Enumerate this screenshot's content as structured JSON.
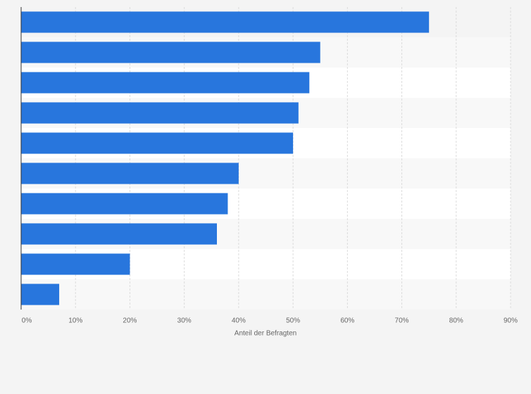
{
  "chart_data": {
    "type": "barh",
    "categories": [
      null,
      null,
      null,
      null,
      null,
      null,
      null,
      null,
      null,
      null
    ],
    "values": [
      75,
      55,
      53,
      51,
      50,
      40,
      38,
      36,
      20,
      7
    ],
    "color": "#2876dd",
    "xlabel": "Anteil der Befragten",
    "xlim": [
      0,
      90
    ],
    "xticks": [
      {
        "value": 0,
        "label": "0%"
      },
      {
        "value": 10,
        "label": "10%"
      },
      {
        "value": 20,
        "label": "20%"
      },
      {
        "value": 30,
        "label": "30%"
      },
      {
        "value": 40,
        "label": "40%"
      },
      {
        "value": 50,
        "label": "50%"
      },
      {
        "value": 60,
        "label": "60%"
      },
      {
        "value": 70,
        "label": "70%"
      },
      {
        "value": 80,
        "label": "80%"
      },
      {
        "value": 90,
        "label": "90%"
      }
    ],
    "grid": true
  }
}
